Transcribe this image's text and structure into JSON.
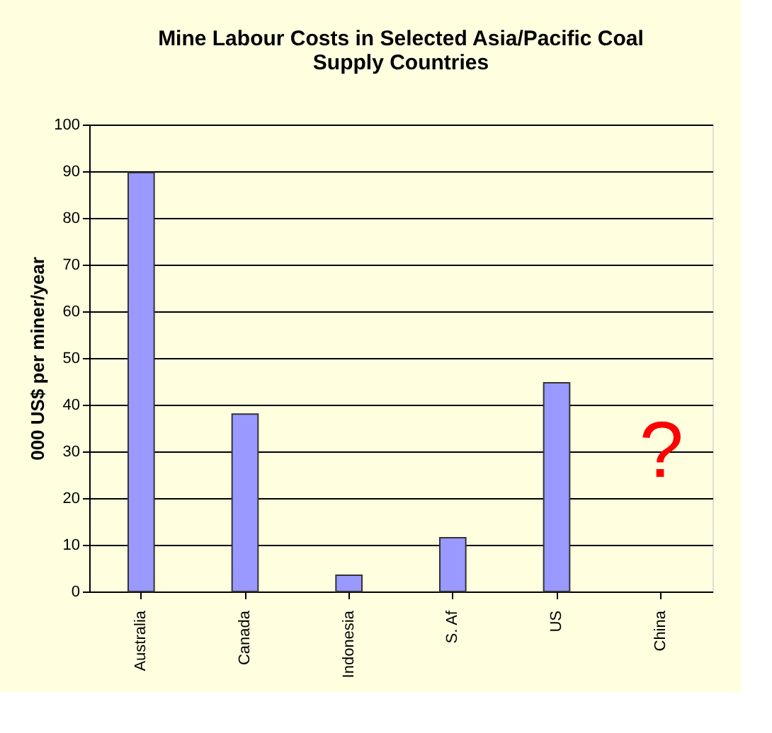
{
  "chart_data": {
    "type": "bar",
    "title": [
      "Mine Labour Costs in Selected Asia/Pacific Coal",
      "Supply Countries"
    ],
    "ylabel": "000 US$ per miner/year",
    "categories": [
      "Australia",
      "Canada",
      "Indonesia",
      "S. Af",
      "US",
      "China"
    ],
    "values": [
      89.7,
      38,
      3.5,
      11.5,
      44.7,
      null
    ],
    "color": "#9999ff",
    "ylim": [
      0,
      100
    ],
    "yticks": [
      0,
      10,
      20,
      30,
      40,
      50,
      60,
      70,
      80,
      90,
      100
    ],
    "grid": "y",
    "annotations": [
      "?"
    ]
  }
}
